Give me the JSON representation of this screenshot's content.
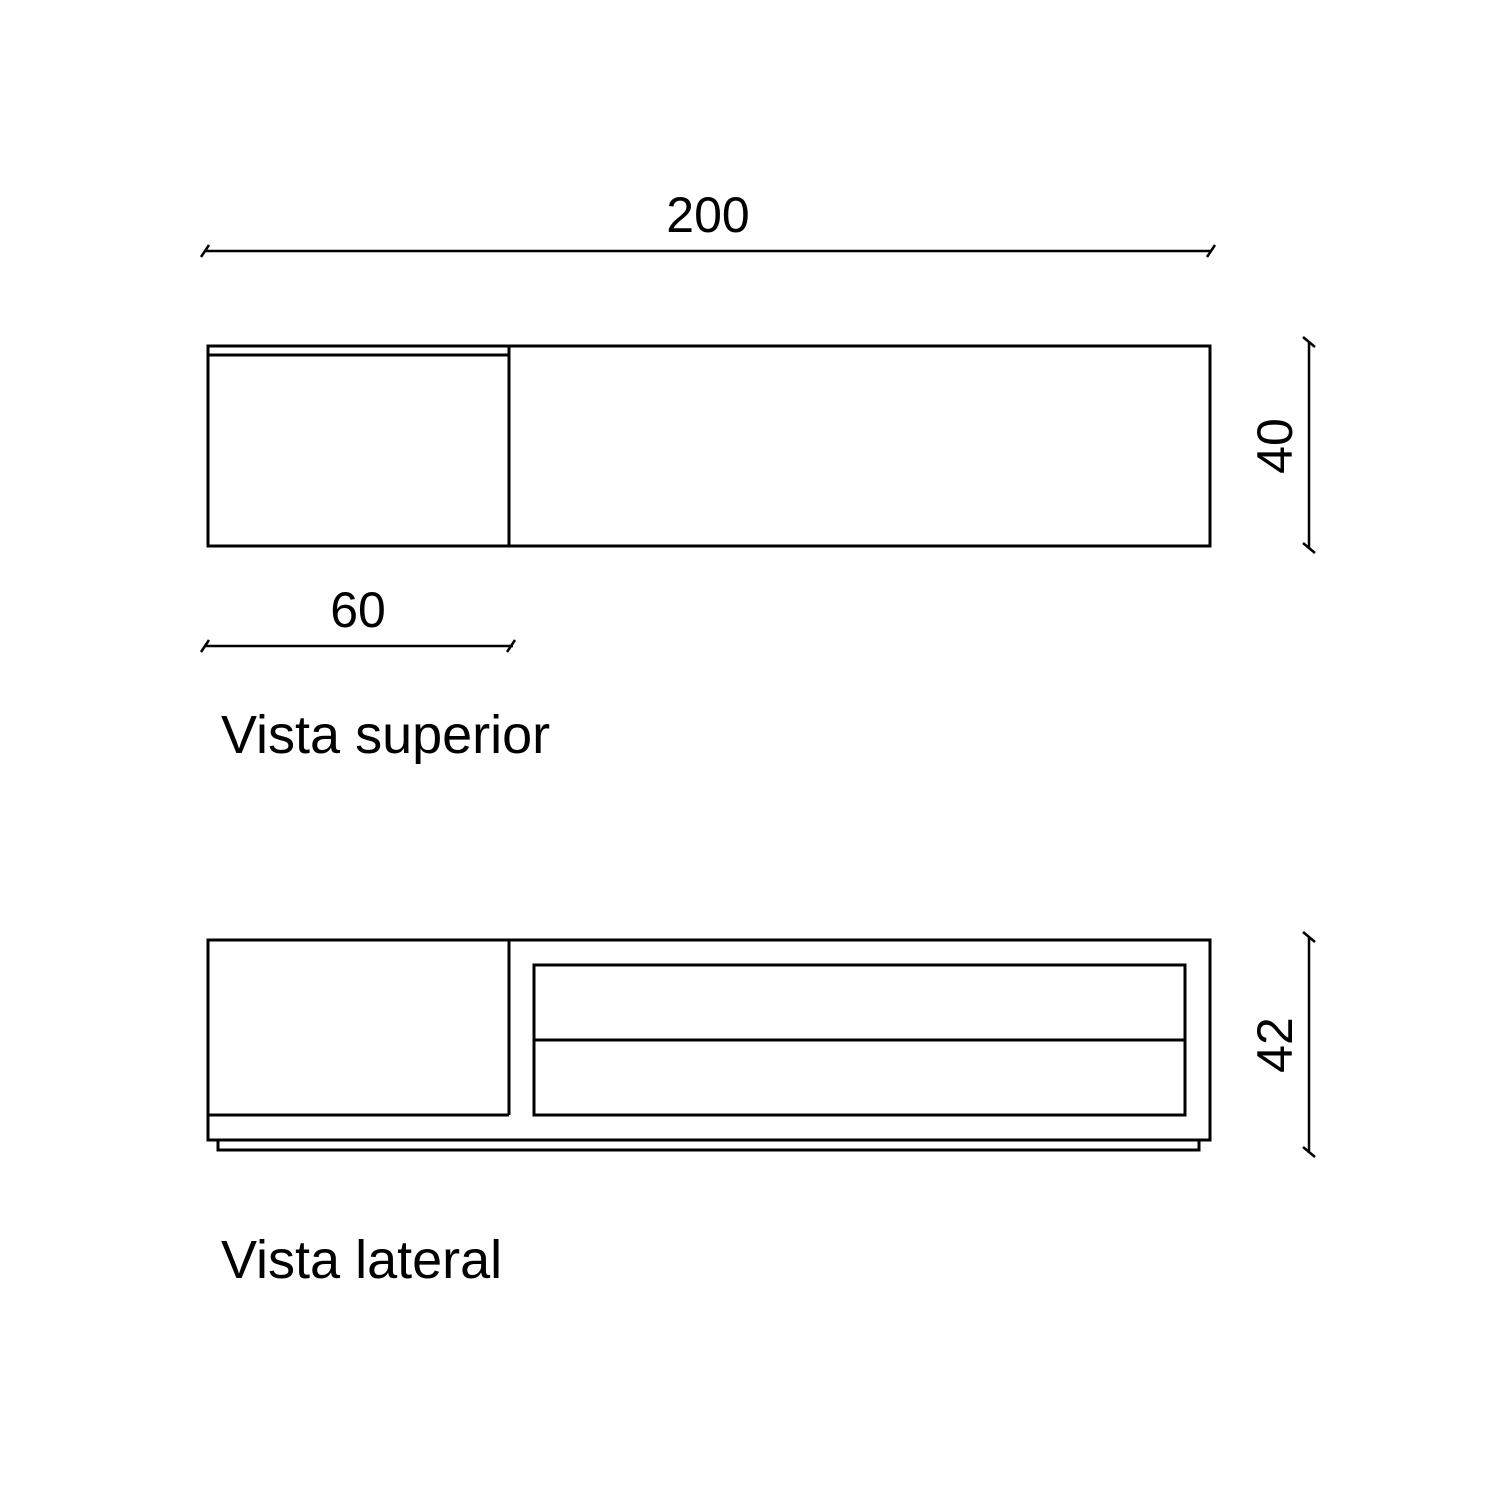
{
  "top_view": {
    "caption": "Vista superior",
    "dim_width": "200",
    "dim_depth": "40",
    "dim_module": "60"
  },
  "side_view": {
    "caption": "Vista lateral",
    "dim_height": "42"
  },
  "colors": {
    "line": "#000000",
    "background": "#ffffff"
  }
}
